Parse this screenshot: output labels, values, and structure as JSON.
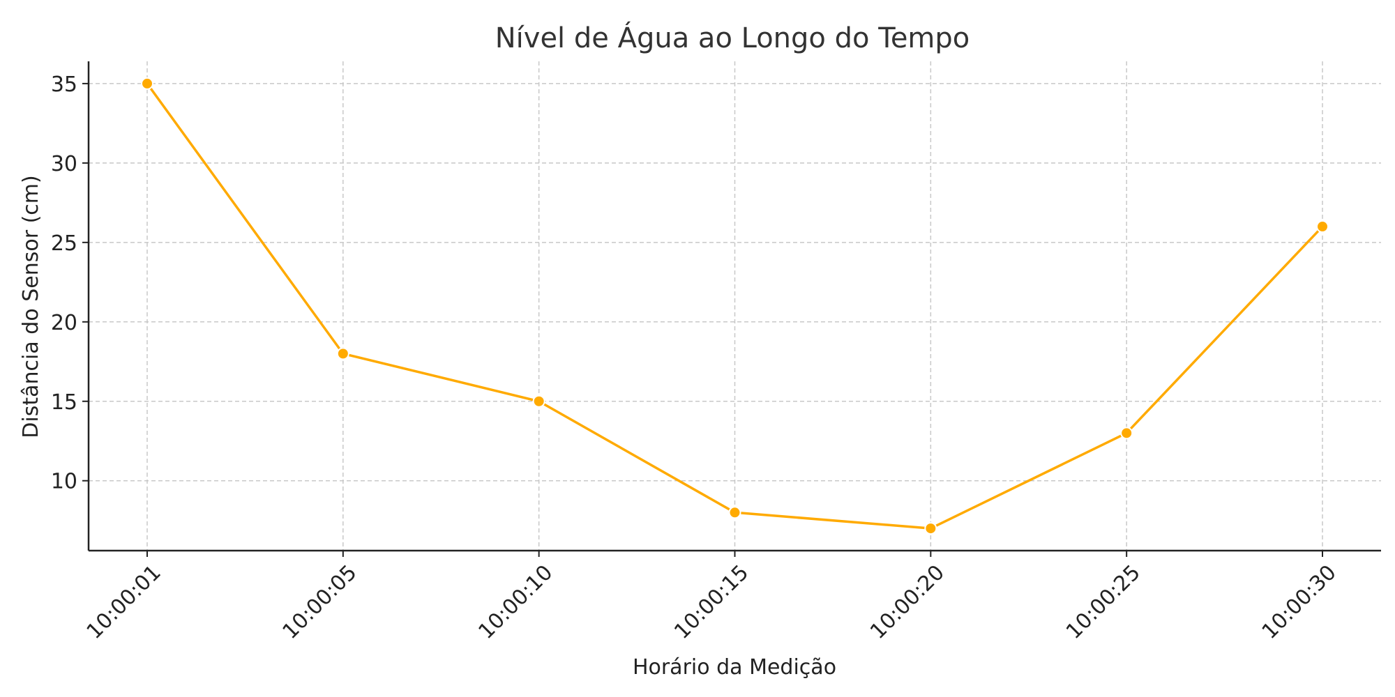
{
  "chart_data": {
    "type": "line",
    "title": "Nível de Água ao Longo do Tempo",
    "xlabel": "Horário da Medição",
    "ylabel": "Distância do Sensor (cm)",
    "categories": [
      "10:00:01",
      "10:00:05",
      "10:00:10",
      "10:00:15",
      "10:00:20",
      "10:00:25",
      "10:00:30"
    ],
    "series": [
      {
        "values": [
          35,
          18,
          15,
          8,
          7,
          13,
          26
        ],
        "color": "#FFAA00"
      }
    ],
    "ylim": [
      5.6,
      36.4
    ],
    "yticks": [
      "10",
      "15",
      "20",
      "25",
      "30",
      "35"
    ],
    "ytick_values": [
      10,
      15,
      20,
      25,
      30,
      35
    ],
    "grid": true,
    "x_tick_rotation": -45
  }
}
